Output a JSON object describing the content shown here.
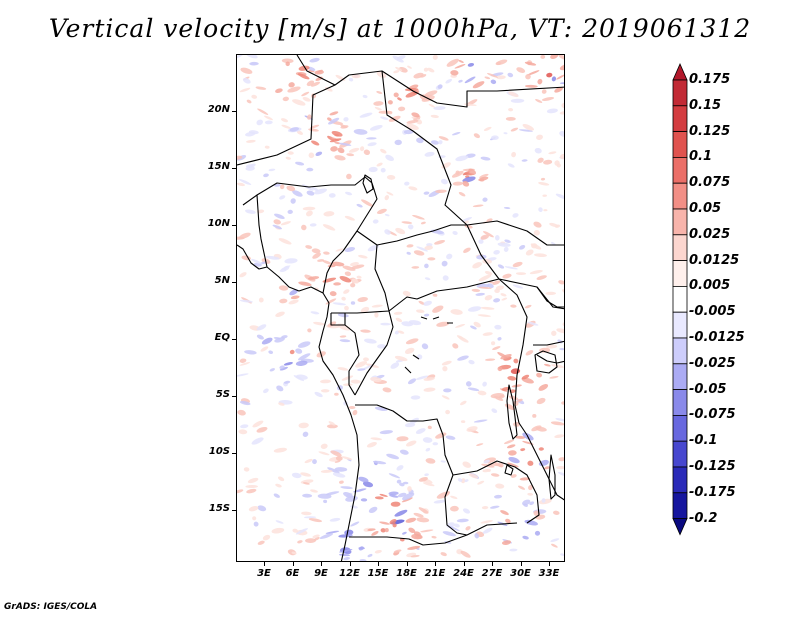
{
  "title": "Vertical velocity [m/s] at 1000hPa, VT: 2019061312",
  "footer": "GrADS: IGES/COLA",
  "lat_labels": [
    "20N",
    "15N",
    "10N",
    "5N",
    "EQ",
    "5S",
    "10S",
    "15S"
  ],
  "lon_labels": [
    "3E",
    "6E",
    "9E",
    "12E",
    "15E",
    "18E",
    "21E",
    "24E",
    "27E",
    "30E",
    "33E"
  ],
  "colorbar": {
    "labels": [
      "0.175",
      "0.15",
      "0.125",
      "0.1",
      "0.075",
      "0.05",
      "0.025",
      "0.0125",
      "0.005",
      "-0.005",
      "-0.0125",
      "-0.025",
      "-0.05",
      "-0.075",
      "-0.1",
      "-0.125",
      "-0.175",
      "-0.2"
    ],
    "colors": [
      "#b2182b",
      "#c22a35",
      "#d33c40",
      "#e0534f",
      "#eb6f68",
      "#f28f86",
      "#f8b4ab",
      "#fcd6cf",
      "#fff0ec",
      "#ffffff",
      "#e9e9ff",
      "#cdcdfb",
      "#ababf4",
      "#8a8aea",
      "#6868df",
      "#4747cf",
      "#2a2ab8",
      "#16169e",
      "#0a0a80"
    ]
  }
}
